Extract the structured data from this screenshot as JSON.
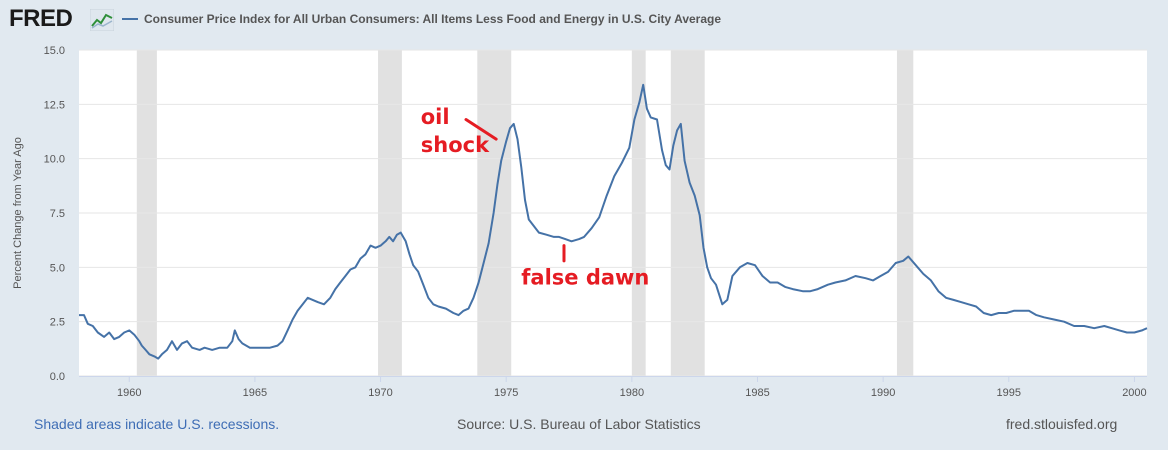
{
  "header": {
    "logo_text": "FRED",
    "logo_icon": "chart-line-icon",
    "legend_label": "Consumer Price Index for All Urban Consumers: All Items Less Food and Energy in U.S. City Average",
    "legend_color": "#4572a7"
  },
  "footer": {
    "recession_note": "Shaded areas indicate U.S. recessions.",
    "source": "Source: U.S. Bureau of Labor Statistics",
    "site": "fred.stlouisfed.org"
  },
  "chart_data": {
    "type": "line",
    "title": "Consumer Price Index for All Urban Consumers: All Items Less Food and Energy in U.S. City Average",
    "xlabel": "",
    "ylabel": "Percent Change from Year Ago",
    "xlim": [
      1958.0,
      2000.5
    ],
    "ylim": [
      0,
      15
    ],
    "x_ticks": [
      1960,
      1965,
      1970,
      1975,
      1980,
      1985,
      1990,
      1995,
      2000
    ],
    "x_tick_labels": [
      "1960",
      "1965",
      "1970",
      "1975",
      "1980",
      "1985",
      "1990",
      "1995",
      "2000"
    ],
    "y_ticks": [
      0,
      2.5,
      5,
      7.5,
      10,
      12.5,
      15
    ],
    "y_tick_labels": [
      "0.0",
      "2.5",
      "5.0",
      "7.5",
      "10.0",
      "12.5",
      "15.0"
    ],
    "grid": "horizontal",
    "line_color": "#4572a7",
    "recession_color": "#e1e1e1",
    "recessions": [
      [
        1960.3,
        1961.1
      ],
      [
        1969.9,
        1970.85
      ],
      [
        1973.85,
        1975.2
      ],
      [
        1980.0,
        1980.55
      ],
      [
        1981.55,
        1982.9
      ],
      [
        1990.55,
        1991.2
      ]
    ],
    "series": [
      {
        "values": [
          [
            1958.0,
            2.8
          ],
          [
            1958.2,
            2.8
          ],
          [
            1958.35,
            2.4
          ],
          [
            1958.55,
            2.3
          ],
          [
            1958.75,
            2.0
          ],
          [
            1959.0,
            1.8
          ],
          [
            1959.2,
            2.0
          ],
          [
            1959.4,
            1.7
          ],
          [
            1959.6,
            1.8
          ],
          [
            1959.8,
            2.0
          ],
          [
            1960.0,
            2.1
          ],
          [
            1960.2,
            1.9
          ],
          [
            1960.4,
            1.6
          ],
          [
            1960.5,
            1.4
          ],
          [
            1960.65,
            1.2
          ],
          [
            1960.8,
            1.0
          ],
          [
            1961.0,
            0.9
          ],
          [
            1961.15,
            0.8
          ],
          [
            1961.3,
            1.0
          ],
          [
            1961.5,
            1.2
          ],
          [
            1961.7,
            1.6
          ],
          [
            1961.9,
            1.2
          ],
          [
            1962.1,
            1.5
          ],
          [
            1962.3,
            1.6
          ],
          [
            1962.5,
            1.3
          ],
          [
            1962.8,
            1.2
          ],
          [
            1963.0,
            1.3
          ],
          [
            1963.3,
            1.2
          ],
          [
            1963.6,
            1.3
          ],
          [
            1963.9,
            1.3
          ],
          [
            1964.1,
            1.6
          ],
          [
            1964.2,
            2.1
          ],
          [
            1964.35,
            1.7
          ],
          [
            1964.5,
            1.5
          ],
          [
            1964.8,
            1.3
          ],
          [
            1965.0,
            1.3
          ],
          [
            1965.3,
            1.3
          ],
          [
            1965.6,
            1.3
          ],
          [
            1965.9,
            1.4
          ],
          [
            1966.1,
            1.6
          ],
          [
            1966.3,
            2.1
          ],
          [
            1966.5,
            2.6
          ],
          [
            1966.7,
            3.0
          ],
          [
            1966.9,
            3.3
          ],
          [
            1967.1,
            3.6
          ],
          [
            1967.3,
            3.5
          ],
          [
            1967.5,
            3.4
          ],
          [
            1967.75,
            3.3
          ],
          [
            1968.0,
            3.6
          ],
          [
            1968.2,
            4.0
          ],
          [
            1968.4,
            4.3
          ],
          [
            1968.6,
            4.6
          ],
          [
            1968.8,
            4.9
          ],
          [
            1969.0,
            5.0
          ],
          [
            1969.2,
            5.4
          ],
          [
            1969.4,
            5.6
          ],
          [
            1969.6,
            6.0
          ],
          [
            1969.8,
            5.9
          ],
          [
            1970.0,
            6.0
          ],
          [
            1970.2,
            6.2
          ],
          [
            1970.35,
            6.4
          ],
          [
            1970.5,
            6.2
          ],
          [
            1970.65,
            6.5
          ],
          [
            1970.8,
            6.6
          ],
          [
            1971.0,
            6.2
          ],
          [
            1971.15,
            5.6
          ],
          [
            1971.3,
            5.1
          ],
          [
            1971.5,
            4.8
          ],
          [
            1971.7,
            4.2
          ],
          [
            1971.9,
            3.6
          ],
          [
            1972.1,
            3.3
          ],
          [
            1972.3,
            3.2
          ],
          [
            1972.6,
            3.1
          ],
          [
            1972.9,
            2.9
          ],
          [
            1973.1,
            2.8
          ],
          [
            1973.3,
            3.0
          ],
          [
            1973.5,
            3.1
          ],
          [
            1973.7,
            3.6
          ],
          [
            1973.9,
            4.3
          ],
          [
            1974.1,
            5.2
          ],
          [
            1974.3,
            6.1
          ],
          [
            1974.5,
            7.5
          ],
          [
            1974.65,
            8.8
          ],
          [
            1974.8,
            9.9
          ],
          [
            1975.0,
            10.8
          ],
          [
            1975.15,
            11.4
          ],
          [
            1975.3,
            11.6
          ],
          [
            1975.45,
            10.9
          ],
          [
            1975.6,
            9.6
          ],
          [
            1975.75,
            8.1
          ],
          [
            1975.9,
            7.2
          ],
          [
            1976.1,
            6.9
          ],
          [
            1976.3,
            6.6
          ],
          [
            1976.6,
            6.5
          ],
          [
            1976.9,
            6.4
          ],
          [
            1977.1,
            6.4
          ],
          [
            1977.35,
            6.3
          ],
          [
            1977.6,
            6.2
          ],
          [
            1977.9,
            6.3
          ],
          [
            1978.1,
            6.4
          ],
          [
            1978.4,
            6.8
          ],
          [
            1978.7,
            7.3
          ],
          [
            1979.0,
            8.3
          ],
          [
            1979.3,
            9.2
          ],
          [
            1979.6,
            9.8
          ],
          [
            1979.9,
            10.5
          ],
          [
            1980.1,
            11.8
          ],
          [
            1980.3,
            12.6
          ],
          [
            1980.45,
            13.4
          ],
          [
            1980.6,
            12.3
          ],
          [
            1980.75,
            11.9
          ],
          [
            1981.0,
            11.8
          ],
          [
            1981.2,
            10.4
          ],
          [
            1981.35,
            9.7
          ],
          [
            1981.5,
            9.5
          ],
          [
            1981.65,
            10.6
          ],
          [
            1981.8,
            11.3
          ],
          [
            1981.95,
            11.6
          ],
          [
            1982.1,
            9.9
          ],
          [
            1982.3,
            8.9
          ],
          [
            1982.5,
            8.3
          ],
          [
            1982.7,
            7.4
          ],
          [
            1982.85,
            5.9
          ],
          [
            1983.0,
            5.0
          ],
          [
            1983.15,
            4.5
          ],
          [
            1983.35,
            4.2
          ],
          [
            1983.6,
            3.3
          ],
          [
            1983.8,
            3.5
          ],
          [
            1984.0,
            4.6
          ],
          [
            1984.3,
            5.0
          ],
          [
            1984.6,
            5.2
          ],
          [
            1984.9,
            5.1
          ],
          [
            1985.2,
            4.6
          ],
          [
            1985.5,
            4.3
          ],
          [
            1985.8,
            4.3
          ],
          [
            1986.1,
            4.1
          ],
          [
            1986.4,
            4.0
          ],
          [
            1986.8,
            3.9
          ],
          [
            1987.1,
            3.9
          ],
          [
            1987.4,
            4.0
          ],
          [
            1987.8,
            4.2
          ],
          [
            1988.1,
            4.3
          ],
          [
            1988.5,
            4.4
          ],
          [
            1988.9,
            4.6
          ],
          [
            1989.3,
            4.5
          ],
          [
            1989.6,
            4.4
          ],
          [
            1989.9,
            4.6
          ],
          [
            1990.2,
            4.8
          ],
          [
            1990.5,
            5.2
          ],
          [
            1990.8,
            5.3
          ],
          [
            1991.0,
            5.5
          ],
          [
            1991.3,
            5.1
          ],
          [
            1991.6,
            4.7
          ],
          [
            1991.9,
            4.4
          ],
          [
            1992.2,
            3.9
          ],
          [
            1992.5,
            3.6
          ],
          [
            1992.8,
            3.5
          ],
          [
            1993.1,
            3.4
          ],
          [
            1993.4,
            3.3
          ],
          [
            1993.7,
            3.2
          ],
          [
            1994.0,
            2.9
          ],
          [
            1994.3,
            2.8
          ],
          [
            1994.6,
            2.9
          ],
          [
            1994.9,
            2.9
          ],
          [
            1995.2,
            3.0
          ],
          [
            1995.5,
            3.0
          ],
          [
            1995.8,
            3.0
          ],
          [
            1996.1,
            2.8
          ],
          [
            1996.4,
            2.7
          ],
          [
            1996.8,
            2.6
          ],
          [
            1997.2,
            2.5
          ],
          [
            1997.6,
            2.3
          ],
          [
            1998.0,
            2.3
          ],
          [
            1998.4,
            2.2
          ],
          [
            1998.8,
            2.3
          ],
          [
            1999.1,
            2.2
          ],
          [
            1999.4,
            2.1
          ],
          [
            1999.7,
            2.0
          ],
          [
            2000.0,
            2.0
          ],
          [
            2000.3,
            2.1
          ],
          [
            2000.5,
            2.2
          ]
        ]
      }
    ],
    "annotations": [
      {
        "text": "oil",
        "x": 1971.6,
        "y": 11.6,
        "color": "#e51c23"
      },
      {
        "text": "shock",
        "x": 1971.6,
        "y": 10.3,
        "color": "#e51c23"
      },
      {
        "text": "false dawn",
        "x": 1975.6,
        "y": 4.2,
        "color": "#e51c23"
      }
    ],
    "annotation_marks": [
      {
        "from": [
          1973.4,
          11.8
        ],
        "to": [
          1974.6,
          10.9
        ],
        "color": "#e51c23"
      },
      {
        "from": [
          1977.3,
          6.0
        ],
        "to": [
          1977.3,
          5.3
        ],
        "color": "#e51c23"
      }
    ]
  }
}
